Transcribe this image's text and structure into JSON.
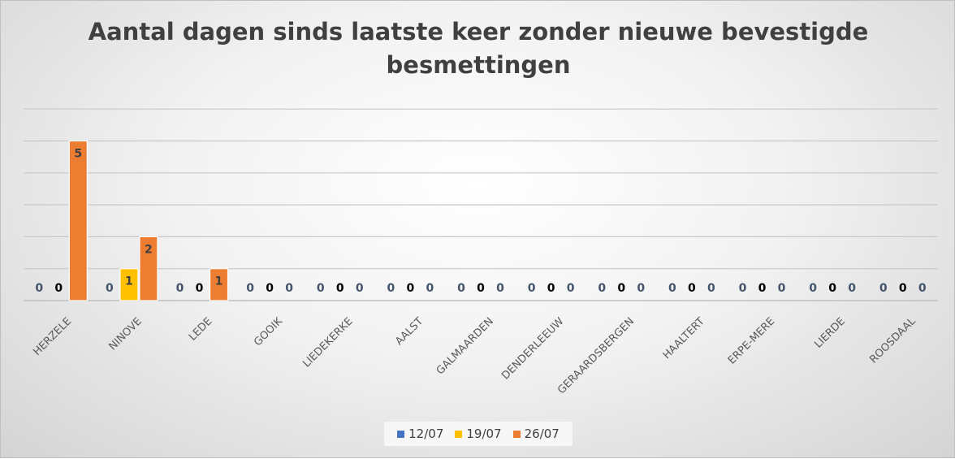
{
  "chart_data": {
    "type": "bar",
    "title": "Aantal dagen sinds laatste keer zonder nieuwe bevestigde besmettingen",
    "categories": [
      "HERZELE",
      "NINOVE",
      "LEDE",
      "GOOIK",
      "LIEDEKERKE",
      "AALST",
      "GALMAARDEN",
      "DENDERLEEUW",
      "GERAARDSBERGEN",
      "HAALTERT",
      "ERPE-MERE",
      "LIERDE",
      "ROOSDAAL"
    ],
    "series": [
      {
        "name": "12/07",
        "color": "#4472c4",
        "values": [
          0,
          0,
          0,
          0,
          0,
          0,
          0,
          0,
          0,
          0,
          0,
          0,
          0
        ]
      },
      {
        "name": "19/07",
        "color": "#ffc000",
        "values": [
          0,
          1,
          0,
          0,
          0,
          0,
          0,
          0,
          0,
          0,
          0,
          0,
          0
        ]
      },
      {
        "name": "26/07",
        "color": "#ed7d31",
        "values": [
          5,
          2,
          1,
          0,
          0,
          0,
          0,
          0,
          0,
          0,
          0,
          0,
          0
        ]
      }
    ],
    "ylim": [
      0,
      6
    ],
    "grid": true,
    "legend": "bottom",
    "xlabel": "",
    "ylabel": ""
  }
}
